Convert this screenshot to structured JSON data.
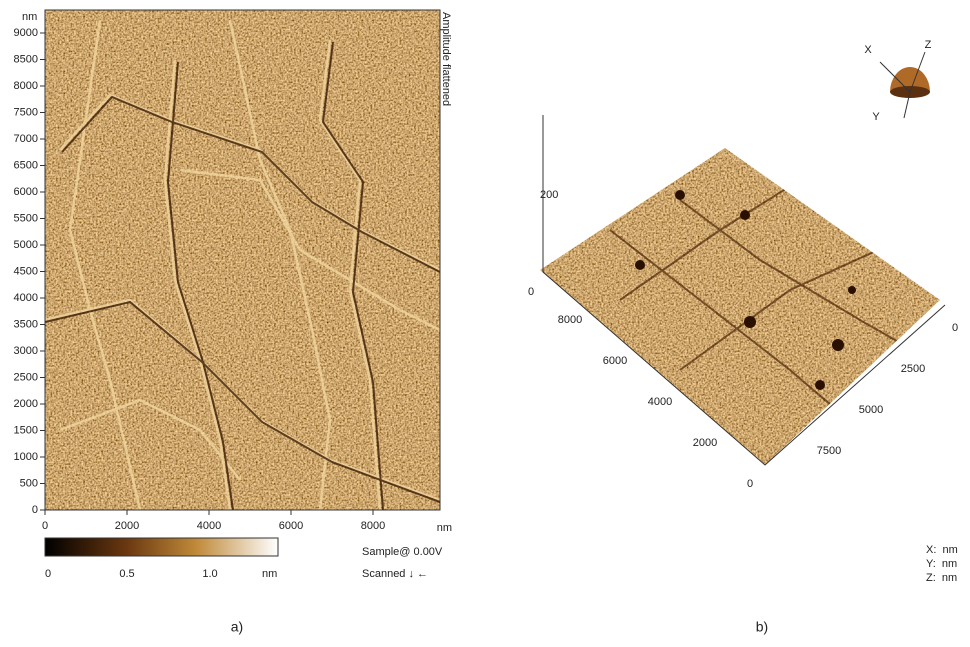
{
  "panel_a": {
    "y_unit": "nm",
    "y_ticks": [
      0,
      500,
      1000,
      1500,
      2000,
      2500,
      3000,
      3500,
      4000,
      4500,
      5000,
      5500,
      6000,
      6500,
      7000,
      7500,
      8000,
      8500,
      9000
    ],
    "x_ticks": [
      0,
      2000,
      4000,
      6000,
      8000
    ],
    "x_unit": "nm",
    "side_label": "Amplitude flattened",
    "colorbar_ticks": [
      "0",
      "0.5",
      "1.0"
    ],
    "colorbar_unit": "nm",
    "sample": "Sample@ 0.00V",
    "scanned": "Scanned ↓ ←",
    "caption": "a)"
  },
  "panel_b": {
    "z_ticks": [
      0,
      200
    ],
    "left_axis_ticks": [
      8000,
      6000,
      4000,
      2000,
      0
    ],
    "right_axis_ticks": [
      0,
      2500,
      5000,
      7500
    ],
    "orientation": [
      "X",
      "Y",
      "Z"
    ],
    "units": [
      "X:  nm",
      "Y:  nm",
      "Z:  nm"
    ],
    "caption": "b)"
  }
}
